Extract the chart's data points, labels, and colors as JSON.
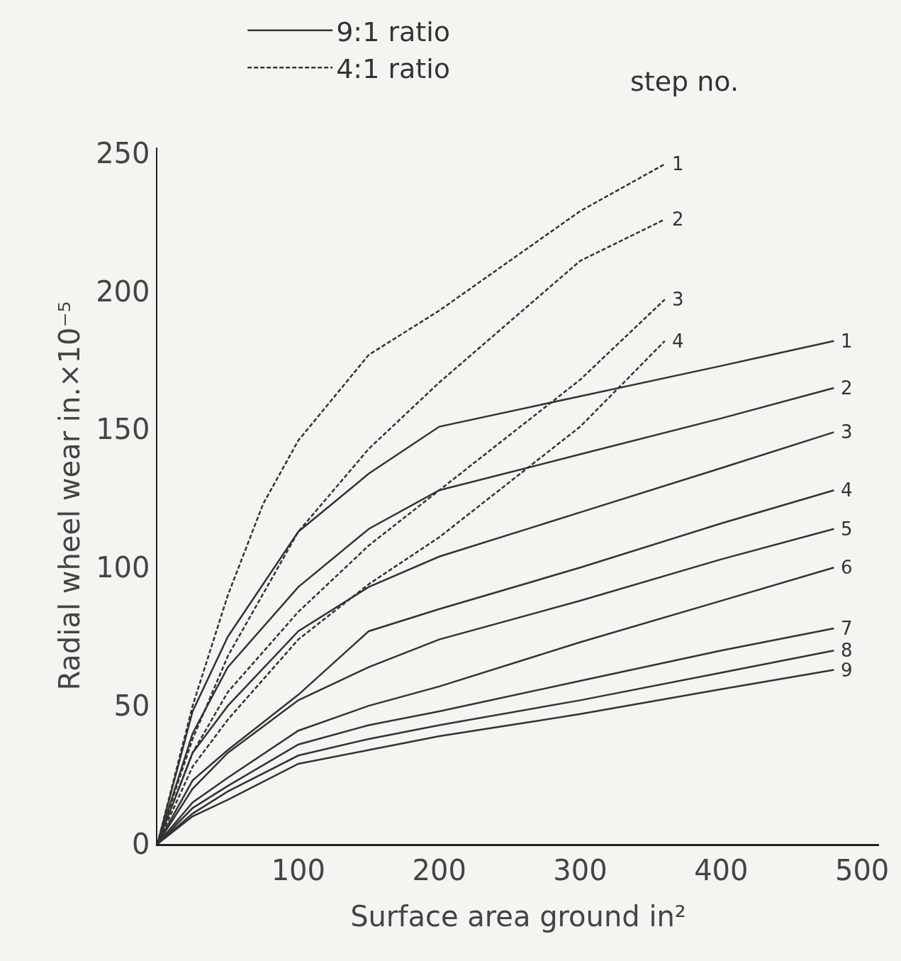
{
  "chart_data": {
    "type": "line",
    "xlabel": "Surface area ground in²",
    "ylabel": "Radial wheel wear in.×10⁻⁵",
    "x": [
      0,
      25,
      50,
      100,
      150,
      200,
      300,
      400,
      480
    ],
    "xlim": [
      0,
      512
    ],
    "ylim": [
      0,
      252
    ],
    "xticks": [
      100,
      200,
      300,
      400,
      500
    ],
    "yticks": [
      0,
      50,
      100,
      150,
      200,
      250
    ],
    "grid": false,
    "marker": "none",
    "legend": "top left",
    "series": [
      {
        "name": "9:1 ratio",
        "color": "#333333",
        "line_style": "solid",
        "values": [
          0,
          48,
          75,
          113,
          134,
          151,
          162,
          173,
          182
        ]
      },
      {
        "color": "#333333",
        "line_style": "solid",
        "values": [
          0,
          40,
          64,
          93,
          114,
          128,
          141,
          154,
          165
        ]
      },
      {
        "color": "#333333",
        "line_style": "solid",
        "values": [
          0,
          33,
          50,
          77,
          93,
          104,
          120,
          136,
          149
        ]
      },
      {
        "color": "#333333",
        "line_style": "solid",
        "values": [
          0,
          23,
          34,
          54,
          77,
          85,
          100,
          116,
          128
        ]
      },
      {
        "color": "#333333",
        "line_style": "solid",
        "values": [
          0,
          20,
          33,
          52,
          64,
          74,
          88,
          103,
          114
        ]
      },
      {
        "color": "#333333",
        "line_style": "solid",
        "values": [
          0,
          15,
          24,
          41,
          50,
          57,
          73,
          88,
          100
        ]
      },
      {
        "color": "#333333",
        "line_style": "solid",
        "values": [
          0,
          13,
          21,
          36,
          43,
          48,
          59,
          70,
          78
        ]
      },
      {
        "color": "#333333",
        "line_style": "solid",
        "values": [
          0,
          11,
          19,
          32,
          38,
          43,
          52,
          62,
          70
        ]
      },
      {
        "color": "#333333",
        "line_style": "solid",
        "values": [
          0,
          10,
          16,
          29,
          34,
          39,
          47,
          56,
          63
        ]
      },
      {
        "name": "4:1 ratio",
        "color": "#333333",
        "line_style": "dashed",
        "x": [
          0,
          25,
          50,
          75,
          100,
          150,
          200,
          300,
          360
        ],
        "values": [
          0,
          50,
          90,
          123,
          146,
          177,
          193,
          229,
          246
        ]
      },
      {
        "color": "#333333",
        "line_style": "dashed",
        "x": [
          0,
          25,
          50,
          100,
          150,
          200,
          300,
          360
        ],
        "values": [
          0,
          38,
          68,
          113,
          143,
          167,
          211,
          226
        ]
      },
      {
        "color": "#333333",
        "line_style": "dashed",
        "x": [
          0,
          25,
          50,
          100,
          150,
          200,
          250,
          300,
          360
        ],
        "values": [
          0,
          33,
          55,
          84,
          108,
          128,
          148,
          168,
          197
        ]
      },
      {
        "color": "#333333",
        "line_style": "dashed",
        "x": [
          0,
          25,
          50,
          100,
          150,
          200,
          300,
          360
        ],
        "values": [
          0,
          28,
          45,
          74,
          94,
          111,
          151,
          182
        ]
      }
    ],
    "annotations": [
      "step no.",
      "1",
      "2",
      "3",
      "4",
      "5",
      "6",
      "7",
      "8",
      "9",
      "1",
      "2",
      "3",
      "4"
    ]
  }
}
